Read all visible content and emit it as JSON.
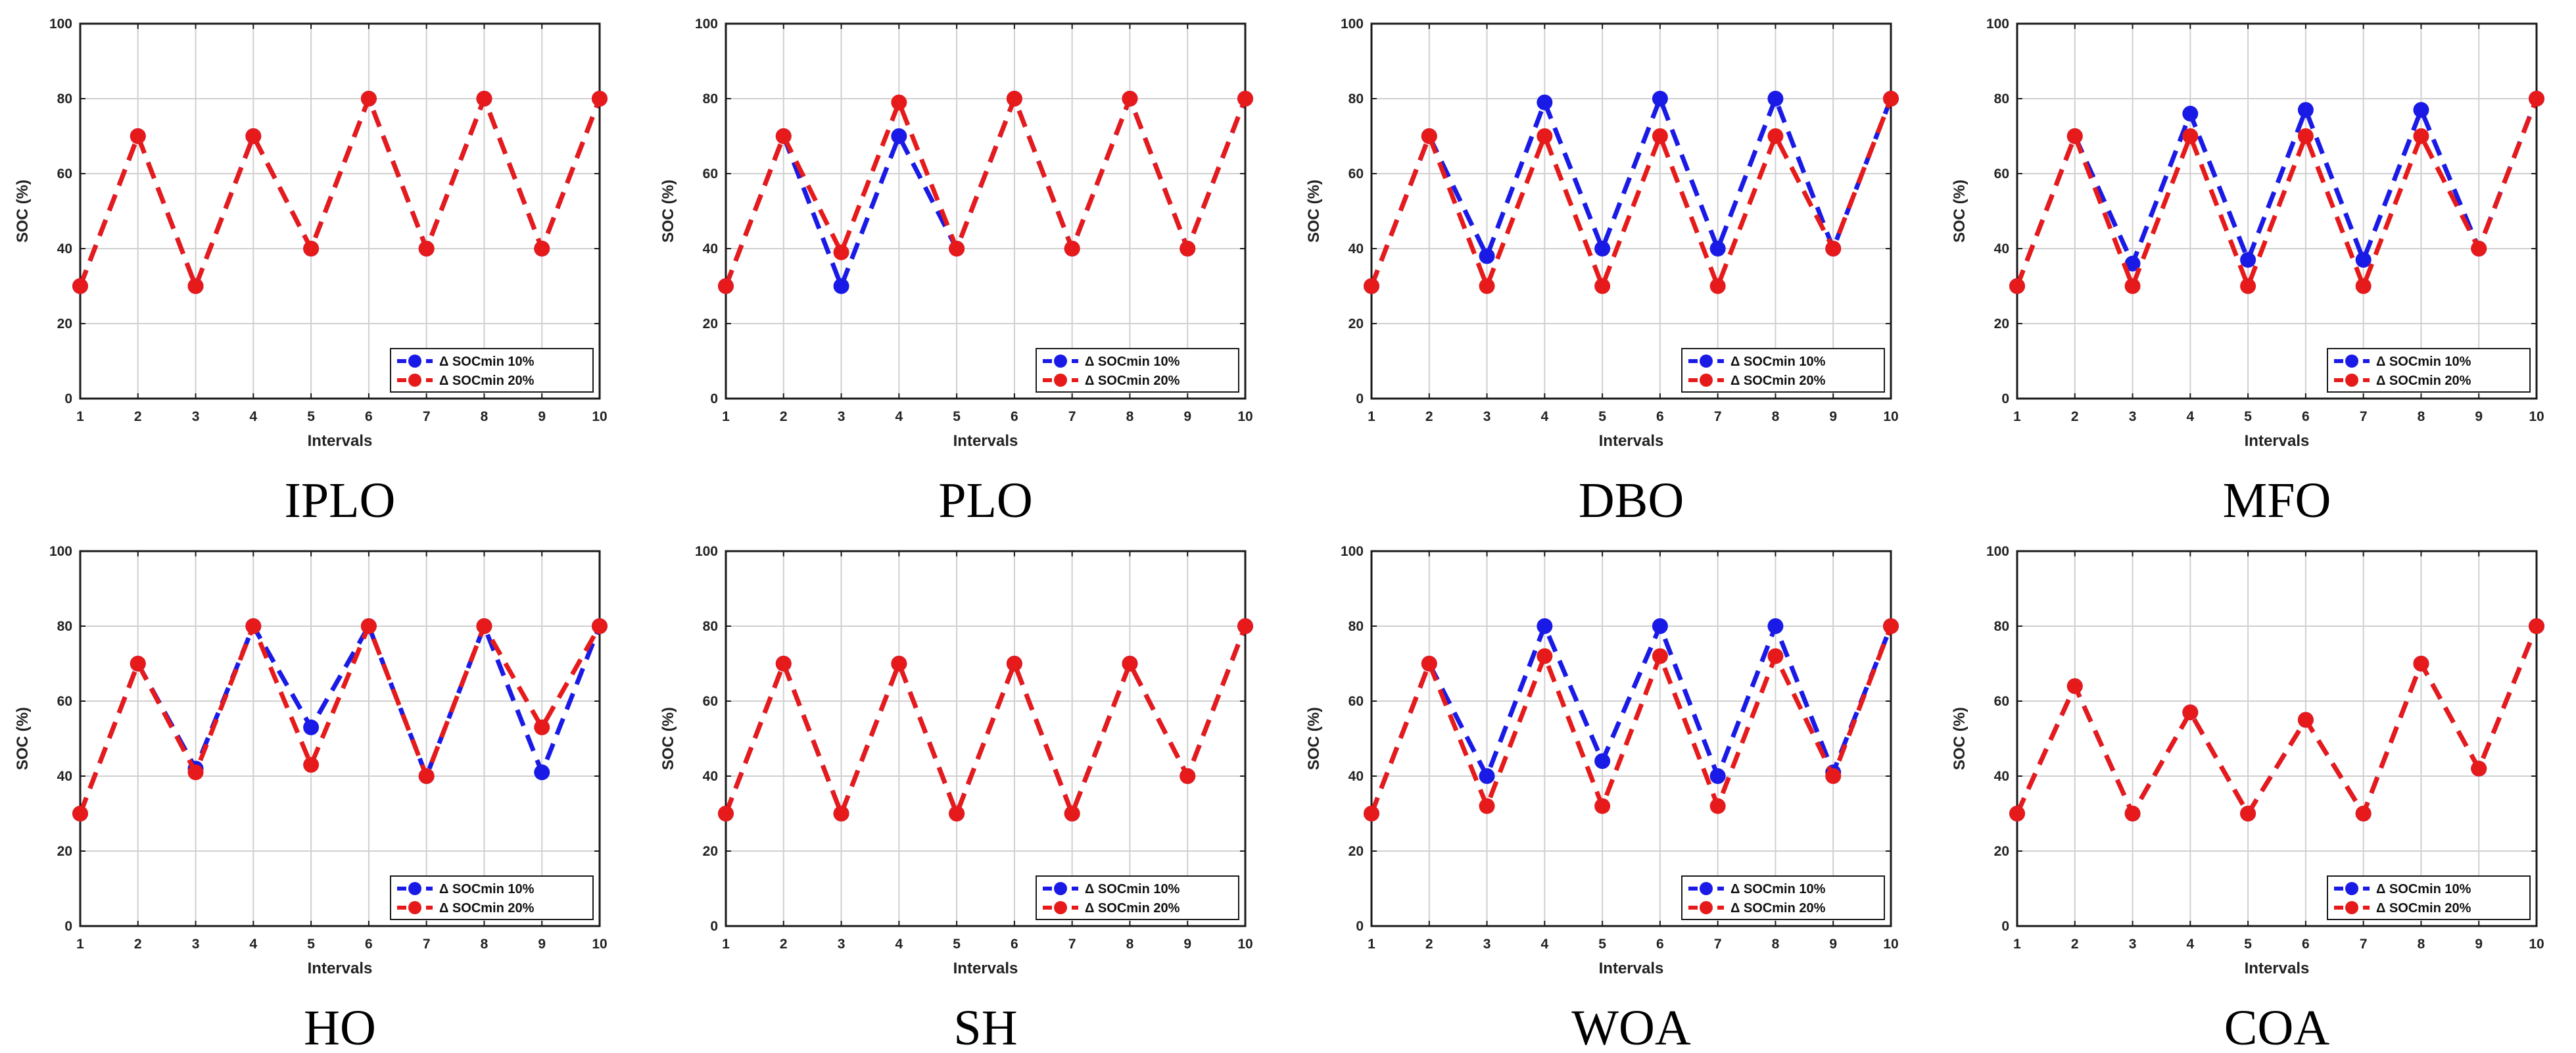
{
  "figure": {
    "colors": {
      "series1": "#1a1ae6",
      "series2": "#e61a1a",
      "grid": "#d0d0d0",
      "axis": "#1a1a1a"
    }
  },
  "chart_data": [
    {
      "type": "line",
      "title": "IPLO",
      "xlabel": "Intervals",
      "ylabel": "SOC (%)",
      "x": [
        1,
        2,
        3,
        4,
        5,
        6,
        7,
        8,
        9,
        10
      ],
      "xlim": [
        1,
        10
      ],
      "ylim": [
        0,
        100
      ],
      "xticks": [
        "1",
        "2",
        "3",
        "4",
        "5",
        "6",
        "7",
        "8",
        "9",
        "10"
      ],
      "yticks": [
        "0",
        "20",
        "40",
        "60",
        "80",
        "100"
      ],
      "grid": true,
      "legend": "bottom-right",
      "series": [
        {
          "name": "Δ SOCmin 10%",
          "values": [
            30,
            70,
            30,
            70,
            40,
            80,
            40,
            80,
            40,
            80
          ]
        },
        {
          "name": "Δ SOCmin 20%",
          "values": [
            30,
            70,
            30,
            70,
            40,
            80,
            40,
            80,
            40,
            80
          ]
        }
      ]
    },
    {
      "type": "line",
      "title": "PLO",
      "xlabel": "Intervals",
      "ylabel": "SOC (%)",
      "x": [
        1,
        2,
        3,
        4,
        5,
        6,
        7,
        8,
        9,
        10
      ],
      "xlim": [
        1,
        10
      ],
      "ylim": [
        0,
        100
      ],
      "xticks": [
        "1",
        "2",
        "3",
        "4",
        "5",
        "6",
        "7",
        "8",
        "9",
        "10"
      ],
      "yticks": [
        "0",
        "20",
        "40",
        "60",
        "80",
        "100"
      ],
      "grid": true,
      "legend": "bottom-right",
      "series": [
        {
          "name": "Δ SOCmin 10%",
          "values": [
            30,
            70,
            30,
            70,
            40,
            80,
            40,
            80,
            40,
            80
          ]
        },
        {
          "name": "Δ SOCmin 20%",
          "values": [
            30,
            70,
            39,
            79,
            40,
            80,
            40,
            80,
            40,
            80
          ]
        }
      ]
    },
    {
      "type": "line",
      "title": "DBO",
      "xlabel": "Intervals",
      "ylabel": "SOC (%)",
      "x": [
        1,
        2,
        3,
        4,
        5,
        6,
        7,
        8,
        9,
        10
      ],
      "xlim": [
        1,
        10
      ],
      "ylim": [
        0,
        100
      ],
      "xticks": [
        "1",
        "2",
        "3",
        "4",
        "5",
        "6",
        "7",
        "8",
        "9",
        "10"
      ],
      "yticks": [
        "0",
        "20",
        "40",
        "60",
        "80",
        "100"
      ],
      "grid": true,
      "legend": "bottom-right",
      "series": [
        {
          "name": "Δ SOCmin 10%",
          "values": [
            30,
            70,
            38,
            79,
            40,
            80,
            40,
            80,
            40,
            80
          ]
        },
        {
          "name": "Δ SOCmin 20%",
          "values": [
            30,
            70,
            30,
            70,
            30,
            70,
            30,
            70,
            40,
            80
          ]
        }
      ]
    },
    {
      "type": "line",
      "title": "MFO",
      "xlabel": "Intervals",
      "ylabel": "SOC (%)",
      "x": [
        1,
        2,
        3,
        4,
        5,
        6,
        7,
        8,
        9,
        10
      ],
      "xlim": [
        1,
        10
      ],
      "ylim": [
        0,
        100
      ],
      "xticks": [
        "1",
        "2",
        "3",
        "4",
        "5",
        "6",
        "7",
        "8",
        "9",
        "10"
      ],
      "yticks": [
        "0",
        "20",
        "40",
        "60",
        "80",
        "100"
      ],
      "grid": true,
      "legend": "bottom-right",
      "series": [
        {
          "name": "Δ SOCmin 10%",
          "values": [
            30,
            70,
            36,
            76,
            37,
            77,
            37,
            77,
            40,
            80
          ]
        },
        {
          "name": "Δ SOCmin 20%",
          "values": [
            30,
            70,
            30,
            70,
            30,
            70,
            30,
            70,
            40,
            80
          ]
        }
      ]
    },
    {
      "type": "line",
      "title": "HO",
      "xlabel": "Intervals",
      "ylabel": "SOC (%)",
      "x": [
        1,
        2,
        3,
        4,
        5,
        6,
        7,
        8,
        9,
        10
      ],
      "xlim": [
        1,
        10
      ],
      "ylim": [
        0,
        100
      ],
      "xticks": [
        "1",
        "2",
        "3",
        "4",
        "5",
        "6",
        "7",
        "8",
        "9",
        "10"
      ],
      "yticks": [
        "0",
        "20",
        "40",
        "60",
        "80",
        "100"
      ],
      "grid": true,
      "legend": "bottom-right",
      "series": [
        {
          "name": "Δ SOCmin 10%",
          "values": [
            30,
            70,
            42,
            80,
            53,
            80,
            40,
            80,
            41,
            80
          ]
        },
        {
          "name": "Δ SOCmin 20%",
          "values": [
            30,
            70,
            41,
            80,
            43,
            80,
            40,
            80,
            53,
            80
          ]
        }
      ]
    },
    {
      "type": "line",
      "title": "SH",
      "xlabel": "Intervals",
      "ylabel": "SOC (%)",
      "x": [
        1,
        2,
        3,
        4,
        5,
        6,
        7,
        8,
        9,
        10
      ],
      "xlim": [
        1,
        10
      ],
      "ylim": [
        0,
        100
      ],
      "xticks": [
        "1",
        "2",
        "3",
        "4",
        "5",
        "6",
        "7",
        "8",
        "9",
        "10"
      ],
      "yticks": [
        "0",
        "20",
        "40",
        "60",
        "80",
        "100"
      ],
      "grid": true,
      "legend": "bottom-right",
      "series": [
        {
          "name": "Δ SOCmin 10%",
          "values": [
            30,
            70,
            30,
            70,
            30,
            70,
            30,
            70,
            40,
            80
          ]
        },
        {
          "name": "Δ SOCmin 20%",
          "values": [
            30,
            70,
            30,
            70,
            30,
            70,
            30,
            70,
            40,
            80
          ]
        }
      ]
    },
    {
      "type": "line",
      "title": "WOA",
      "xlabel": "Intervals",
      "ylabel": "SOC (%)",
      "x": [
        1,
        2,
        3,
        4,
        5,
        6,
        7,
        8,
        9,
        10
      ],
      "xlim": [
        1,
        10
      ],
      "ylim": [
        0,
        100
      ],
      "xticks": [
        "1",
        "2",
        "3",
        "4",
        "5",
        "6",
        "7",
        "8",
        "9",
        "10"
      ],
      "yticks": [
        "0",
        "20",
        "40",
        "60",
        "80",
        "100"
      ],
      "grid": true,
      "legend": "bottom-right",
      "series": [
        {
          "name": "Δ SOCmin 10%",
          "values": [
            30,
            70,
            40,
            80,
            44,
            80,
            40,
            80,
            41,
            80
          ]
        },
        {
          "name": "Δ SOCmin 20%",
          "values": [
            30,
            70,
            32,
            72,
            32,
            72,
            32,
            72,
            40,
            80
          ]
        }
      ]
    },
    {
      "type": "line",
      "title": "COA",
      "xlabel": "Intervals",
      "ylabel": "SOC (%)",
      "x": [
        1,
        2,
        3,
        4,
        5,
        6,
        7,
        8,
        9,
        10
      ],
      "xlim": [
        1,
        10
      ],
      "ylim": [
        0,
        100
      ],
      "xticks": [
        "1",
        "2",
        "3",
        "4",
        "5",
        "6",
        "7",
        "8",
        "9",
        "10"
      ],
      "yticks": [
        "0",
        "20",
        "40",
        "60",
        "80",
        "100"
      ],
      "grid": true,
      "legend": "bottom-right",
      "series": [
        {
          "name": "Δ SOCmin 10%",
          "values": [
            30,
            64,
            30,
            57,
            30,
            55,
            30,
            70,
            42,
            80
          ]
        },
        {
          "name": "Δ SOCmin 20%",
          "values": [
            30,
            64,
            30,
            57,
            30,
            55,
            30,
            70,
            42,
            80
          ]
        }
      ]
    }
  ]
}
